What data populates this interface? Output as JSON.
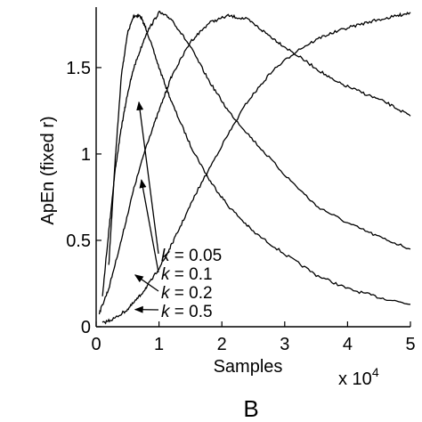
{
  "chart_data": {
    "type": "line",
    "xlabel": "Samples",
    "ylabel": "ApEn (fixed r)",
    "x_multiplier": "x 10",
    "x_multiplier_exp": "4",
    "panel_label": "B",
    "xlim": [
      0,
      5
    ],
    "ylim": [
      0,
      1.85
    ],
    "x_ticks": [
      "0",
      "1",
      "2",
      "3",
      "4",
      "5"
    ],
    "y_ticks": [
      "0",
      "0.5",
      "1",
      "1.5"
    ],
    "grid": false,
    "annotations": [
      {
        "var": "k",
        "text": " = 0.05",
        "target": [
          0.68,
          1.3
        ]
      },
      {
        "var": "k",
        "text": " = 0.1",
        "target": [
          0.72,
          0.85
        ]
      },
      {
        "var": "k",
        "text": " = 0.2",
        "target": [
          0.62,
          0.3
        ]
      },
      {
        "var": "k",
        "text": " = 0.5",
        "target": [
          0.62,
          0.1
        ]
      }
    ],
    "series": [
      {
        "x": [
          0.2,
          0.3,
          0.4,
          0.5,
          0.6,
          0.7,
          0.8,
          1.0,
          1.2,
          1.5,
          1.8,
          2.1,
          2.5,
          3.0,
          3.5,
          4.0,
          4.5,
          5.0
        ],
        "y": [
          0.35,
          0.95,
          1.45,
          1.7,
          1.8,
          1.8,
          1.72,
          1.5,
          1.3,
          1.05,
          0.85,
          0.7,
          0.55,
          0.42,
          0.3,
          0.22,
          0.17,
          0.13
        ]
      },
      {
        "x": [
          0.1,
          0.2,
          0.3,
          0.4,
          0.5,
          0.6,
          0.8,
          1.0,
          1.2,
          1.5,
          1.8,
          2.1,
          2.5,
          3.0,
          3.5,
          4.0,
          4.5,
          5.0
        ],
        "y": [
          0.18,
          0.55,
          0.9,
          1.15,
          1.35,
          1.5,
          1.7,
          1.82,
          1.78,
          1.62,
          1.42,
          1.25,
          1.08,
          0.88,
          0.7,
          0.6,
          0.52,
          0.45
        ]
      },
      {
        "x": [
          0.05,
          0.2,
          0.4,
          0.6,
          0.8,
          1.0,
          1.2,
          1.5,
          1.8,
          2.1,
          2.4,
          2.7,
          3.0,
          3.4,
          3.8,
          4.2,
          4.6,
          5.0
        ],
        "y": [
          0.08,
          0.22,
          0.5,
          0.8,
          1.05,
          1.25,
          1.45,
          1.65,
          1.76,
          1.8,
          1.78,
          1.7,
          1.62,
          1.52,
          1.42,
          1.36,
          1.3,
          1.22
        ]
      },
      {
        "x": [
          0.1,
          0.3,
          0.5,
          0.7,
          0.9,
          1.1,
          1.3,
          1.6,
          2.0,
          2.4,
          2.8,
          3.2,
          3.6,
          4.0,
          4.4,
          4.8,
          5.0
        ],
        "y": [
          0.02,
          0.05,
          0.1,
          0.18,
          0.28,
          0.4,
          0.55,
          0.78,
          1.05,
          1.3,
          1.48,
          1.6,
          1.68,
          1.73,
          1.77,
          1.8,
          1.82
        ]
      }
    ]
  }
}
